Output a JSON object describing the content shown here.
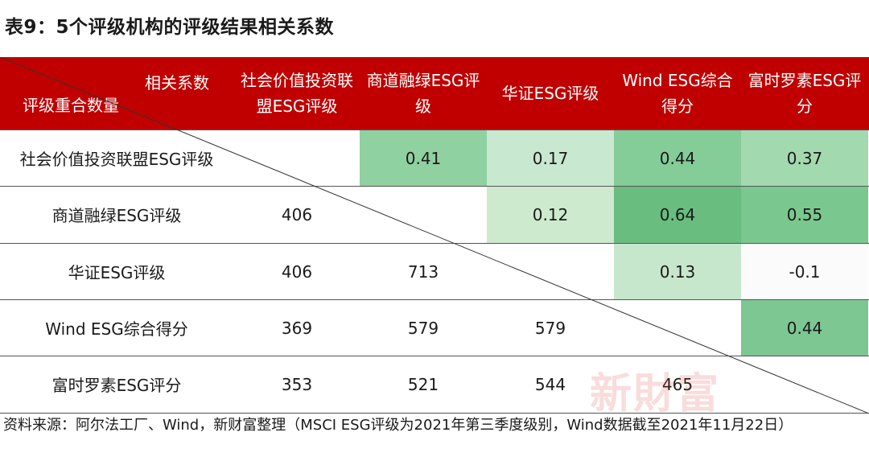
{
  "title": "表9：5个评级机构的评级结果相关系数",
  "header": {
    "corner_top": "相关系数",
    "corner_bottom": "评级重合数量",
    "columns": [
      {
        "line1": "社会价值投资联",
        "line2": "盟ESG评级"
      },
      {
        "line1": "商道融绿ESG评",
        "line2": "级"
      },
      {
        "line1": "华证ESG评级",
        "line2": ""
      },
      {
        "line1": "Wind ESG综合",
        "line2": "得分"
      },
      {
        "line1": "富时罗素ESG评",
        "line2": "分"
      }
    ]
  },
  "rows": [
    {
      "label": "社会价值投资联盟ESG评级",
      "cells": [
        "",
        "0.41",
        "0.17",
        "0.44",
        "0.37"
      ]
    },
    {
      "label": "商道融绿ESG评级",
      "cells": [
        "406",
        "",
        "0.12",
        "0.64",
        "0.55"
      ]
    },
    {
      "label": "华证ESG评级",
      "cells": [
        "406",
        "713",
        "",
        "0.13",
        "-0.1"
      ]
    },
    {
      "label": "Wind ESG综合得分",
      "cells": [
        "369",
        "579",
        "579",
        "",
        "0.44"
      ]
    },
    {
      "label": "富时罗素ESG评分",
      "cells": [
        "353",
        "521",
        "544",
        "465",
        ""
      ]
    }
  ],
  "cell_colors": [
    [
      "",
      "#8fd1a0",
      "#c8e8d0",
      "#84cc98",
      "#a3d9af"
    ],
    [
      "",
      "",
      "#cdeacf",
      "#68bd7f",
      "#7ac88f"
    ],
    [
      "",
      "",
      "",
      "#c6e7cc",
      "#fbfbfb"
    ],
    [
      "",
      "",
      "",
      "",
      "#7cc792"
    ],
    [
      "",
      "",
      "",
      "",
      ""
    ]
  ],
  "watermark": "新財富",
  "source": "资料来源：阿尔法工厂、Wind，新财富整理（MSCI ESG评级为2021年第三季度级别，Wind数据截至2021年11月22日）",
  "colors": {
    "header_bg": "#c00000",
    "header_text": "#ffffff"
  }
}
